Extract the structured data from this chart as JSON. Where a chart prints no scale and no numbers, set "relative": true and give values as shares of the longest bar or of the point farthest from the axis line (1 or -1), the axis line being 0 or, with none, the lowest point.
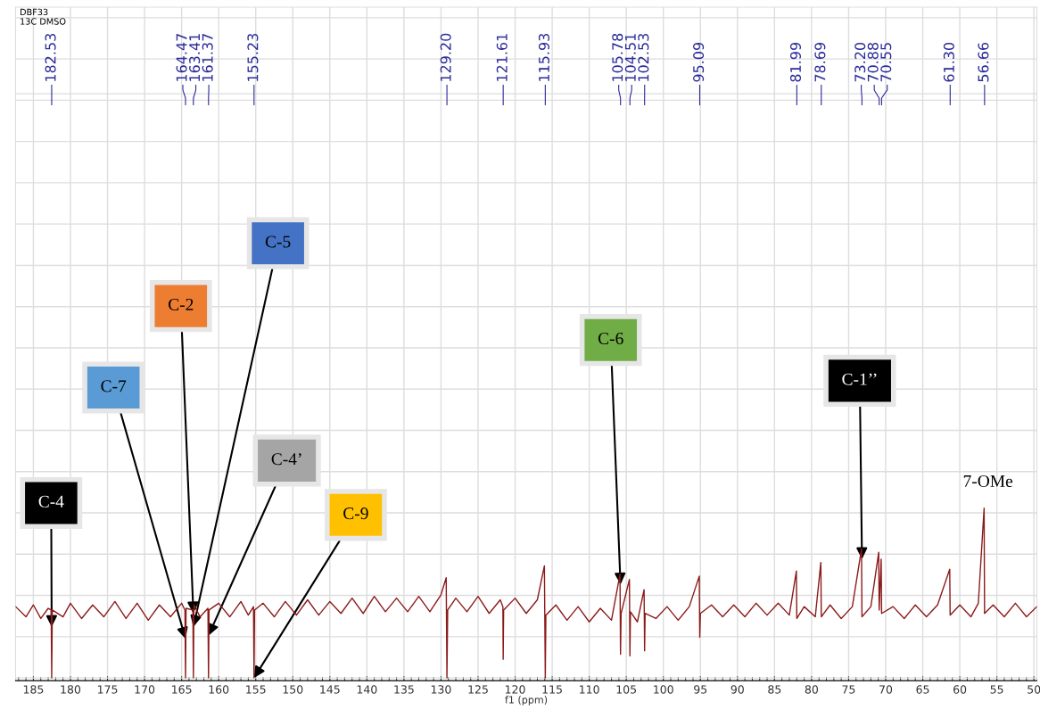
{
  "chart_data": {
    "type": "line",
    "title": "DBF33",
    "subtitle": "13C DMSO",
    "xlabel": "f1 (ppm)",
    "relative": true,
    "xlim": [
      187.4,
      49.6
    ],
    "xticks": [
      185,
      180,
      175,
      170,
      165,
      160,
      155,
      150,
      145,
      140,
      135,
      130,
      125,
      120,
      115,
      110,
      105,
      100,
      95,
      90,
      85,
      80,
      75,
      70,
      65,
      60,
      55,
      50
    ],
    "grid": true,
    "marker": "none",
    "line_style": "solid",
    "x": [
      187.4,
      186,
      185,
      184,
      183,
      182.6,
      182.53,
      182.45,
      181,
      180,
      178.5,
      177,
      175.5,
      174,
      172.5,
      171,
      169.5,
      168,
      166.5,
      165,
      164.55,
      164.47,
      164.4,
      163.48,
      163.41,
      163.34,
      162.5,
      161.45,
      161.37,
      161.3,
      160,
      158.5,
      157,
      156,
      155.3,
      155.23,
      155.16,
      154,
      152.5,
      151,
      149.5,
      148,
      146.5,
      145,
      143.5,
      142,
      140.5,
      139,
      137.5,
      136,
      134.5,
      133,
      131.5,
      130,
      129.3,
      129.2,
      129.1,
      128,
      126.5,
      125,
      123.5,
      122,
      121.65,
      121.61,
      121.55,
      120,
      118.5,
      117,
      116.05,
      115.93,
      115.85,
      114.5,
      113,
      111.5,
      110,
      108.5,
      107,
      105.85,
      105.78,
      105.7,
      104.58,
      104.51,
      104.44,
      103.5,
      102.6,
      102.53,
      102.46,
      101,
      99.5,
      98,
      96.5,
      95.15,
      95.09,
      95.0,
      93.5,
      92,
      90.5,
      89,
      87.5,
      86,
      84.5,
      83,
      82.05,
      81.99,
      81,
      79.5,
      78.75,
      78.69,
      77.5,
      76,
      74.5,
      73.26,
      73.2,
      72,
      70.94,
      70.88,
      70.61,
      70.55,
      69,
      67.5,
      66,
      64.5,
      63,
      61.36,
      61.3,
      60,
      58.5,
      57.5,
      56.72,
      56.66,
      55.5,
      54,
      52.5,
      51,
      49.6
    ],
    "series": [
      {
        "color": "#8b1a1a",
        "values": [
          0.42,
          0.36,
          0.43,
          0.35,
          0.41,
          0.4,
          0.0,
          0.4,
          0.36,
          0.44,
          0.35,
          0.43,
          0.36,
          0.45,
          0.35,
          0.44,
          0.34,
          0.43,
          0.36,
          0.44,
          0.4,
          0.0,
          0.41,
          0.4,
          0.0,
          0.43,
          0.36,
          0.41,
          0.0,
          0.4,
          0.44,
          0.36,
          0.45,
          0.37,
          0.42,
          0.0,
          0.4,
          0.44,
          0.36,
          0.45,
          0.37,
          0.46,
          0.37,
          0.45,
          0.38,
          0.47,
          0.38,
          0.48,
          0.39,
          0.47,
          0.39,
          0.48,
          0.39,
          0.49,
          0.59,
          0.0,
          0.4,
          0.47,
          0.39,
          0.48,
          0.38,
          0.46,
          0.42,
          0.11,
          0.4,
          0.47,
          0.38,
          0.46,
          0.66,
          0.0,
          0.37,
          0.43,
          0.34,
          0.42,
          0.33,
          0.41,
          0.34,
          0.61,
          0.14,
          0.38,
          0.58,
          0.13,
          0.39,
          0.33,
          0.52,
          0.16,
          0.38,
          0.35,
          0.42,
          0.34,
          0.42,
          0.6,
          0.24,
          0.38,
          0.43,
          0.36,
          0.43,
          0.36,
          0.44,
          0.37,
          0.44,
          0.37,
          0.63,
          0.35,
          0.42,
          0.36,
          0.68,
          0.36,
          0.43,
          0.35,
          0.42,
          0.76,
          0.36,
          0.42,
          0.74,
          0.4,
          0.7,
          0.38,
          0.42,
          0.35,
          0.43,
          0.36,
          0.43,
          0.64,
          0.37,
          0.43,
          0.36,
          0.44,
          1.0,
          0.38,
          0.43,
          0.36,
          0.44,
          0.36,
          0.42
        ]
      }
    ],
    "annotations": [
      {
        "text": "182.53",
        "x": 182.53
      },
      {
        "text": "164.47",
        "x": 164.47
      },
      {
        "text": "163.41",
        "x": 163.41
      },
      {
        "text": "161.37",
        "x": 161.37
      },
      {
        "text": "155.23",
        "x": 155.23
      },
      {
        "text": "129.20",
        "x": 129.2
      },
      {
        "text": "121.61",
        "x": 121.61
      },
      {
        "text": "115.93",
        "x": 115.93
      },
      {
        "text": "105.78",
        "x": 105.78
      },
      {
        "text": "104.51",
        "x": 104.51
      },
      {
        "text": "102.53",
        "x": 102.53
      },
      {
        "text": "95.09",
        "x": 95.09
      },
      {
        "text": "81.99",
        "x": 81.99
      },
      {
        "text": "78.69",
        "x": 78.69
      },
      {
        "text": "73.20",
        "x": 73.2
      },
      {
        "text": "70.88",
        "x": 70.88
      },
      {
        "text": "70.55",
        "x": 70.55
      },
      {
        "text": "61.30",
        "x": 61.3
      },
      {
        "text": "56.66",
        "x": 56.66
      },
      {
        "text": "C-4",
        "x": 182.53,
        "y": 0.3
      },
      {
        "text": "C-7",
        "x": 164.47,
        "y": 0.23
      },
      {
        "text": "C-2",
        "x": 163.41,
        "y": 0.38
      },
      {
        "text": "C-5",
        "x": 163.41,
        "y": 0.3
      },
      {
        "text": "C-4’",
        "x": 161.37,
        "y": 0.25
      },
      {
        "text": "C-9",
        "x": 155.23,
        "y": 0.0
      },
      {
        "text": "C-6",
        "x": 105.78,
        "y": 0.55
      },
      {
        "text": "C-1’’",
        "x": 73.2,
        "y": 0.7
      },
      "7-OMe"
    ]
  }
}
